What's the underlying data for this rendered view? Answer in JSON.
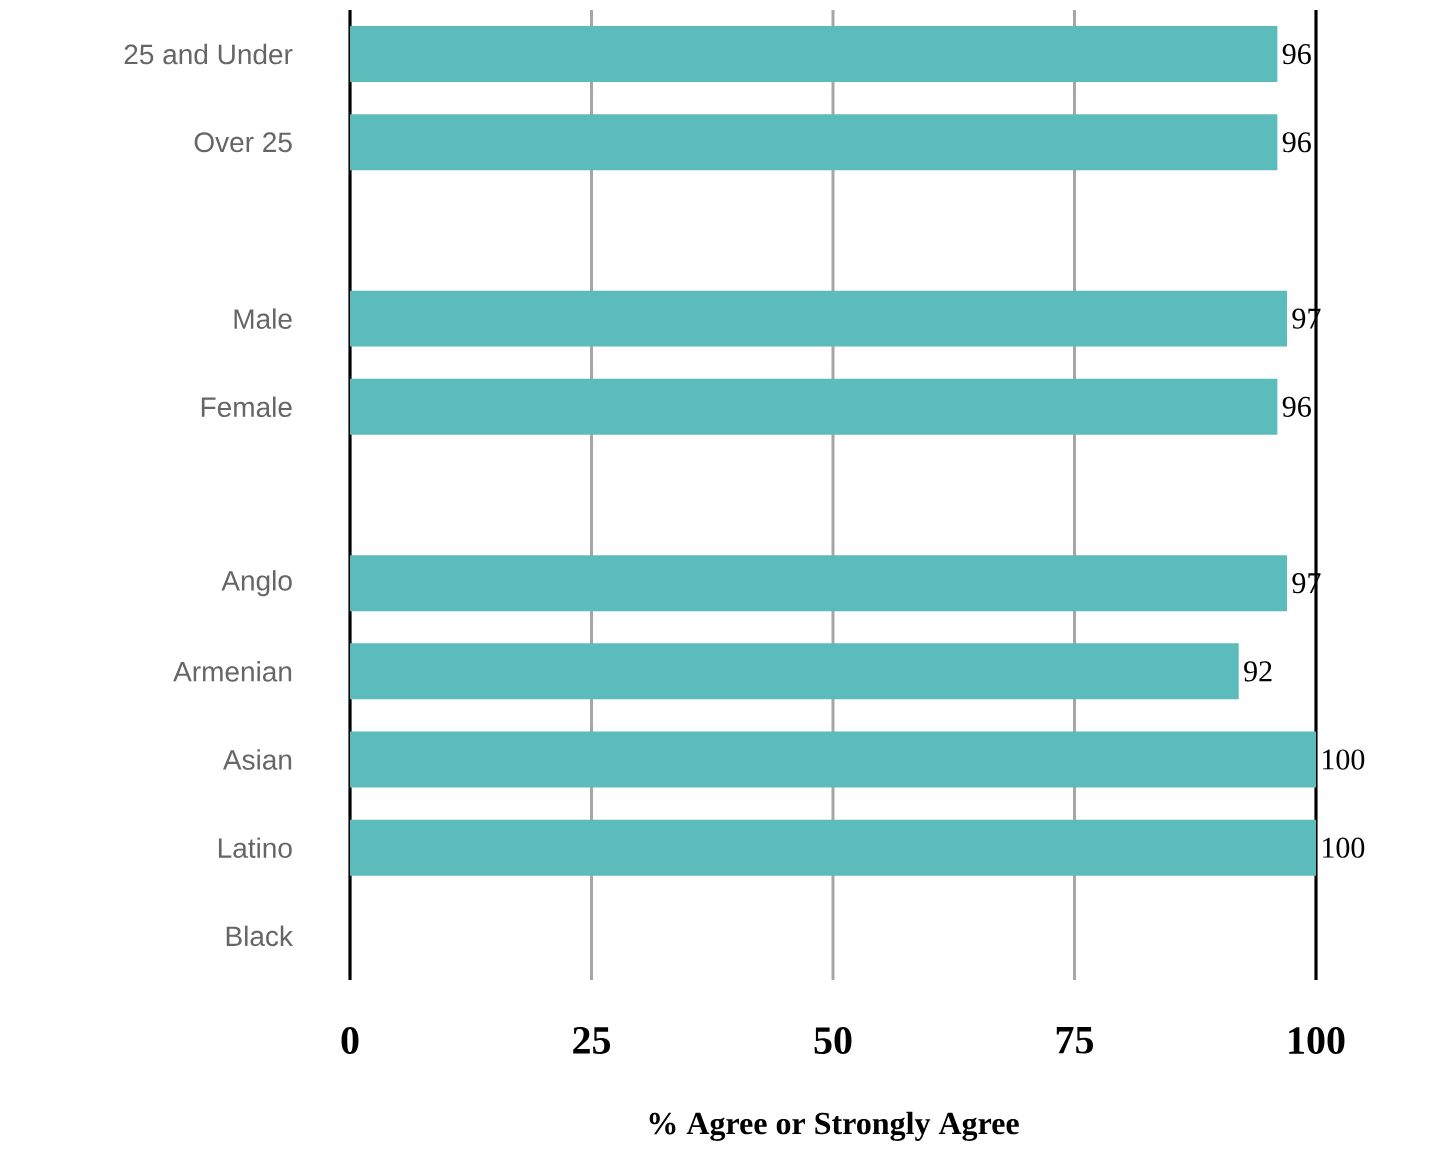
{
  "chart_data": {
    "type": "bar",
    "orientation": "horizontal",
    "categories": [
      "25 and Under",
      "Over 25",
      null,
      "Male",
      "Female",
      null,
      "Anglo",
      "Armenian",
      "Asian",
      "Latino",
      "Black"
    ],
    "values": [
      96,
      96,
      null,
      97,
      96,
      null,
      97,
      92,
      100,
      100,
      null
    ],
    "color": "#5bbcbb",
    "xlim": [
      0,
      100
    ],
    "xticks": [
      0,
      25,
      50,
      75,
      100
    ],
    "grid": "x",
    "xlabel": "% Agree or Strongly Agree",
    "data_labels": true
  }
}
